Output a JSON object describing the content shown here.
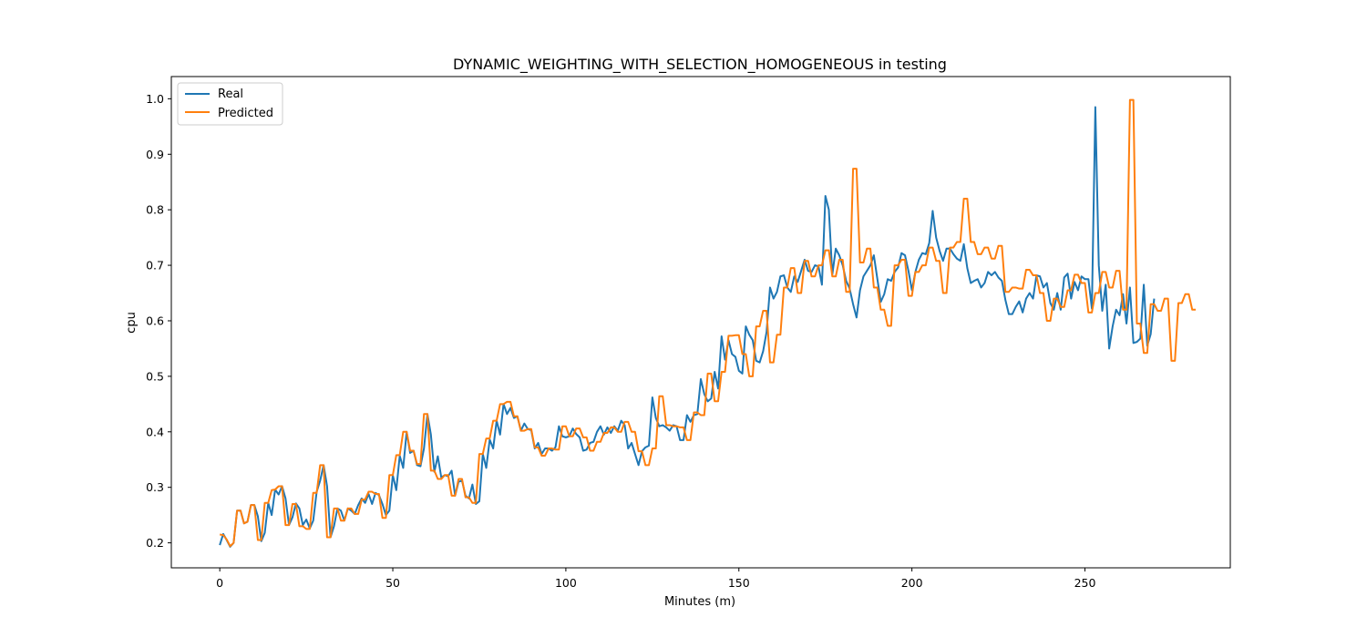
{
  "chart_data": {
    "type": "line",
    "title": "DYNAMIC_WEIGHTING_WITH_SELECTION_HOMOGENEOUS in testing",
    "xlabel": "Minutes (m)",
    "ylabel": "cpu",
    "xlim": [
      -14,
      292
    ],
    "ylim": [
      0.155,
      1.04
    ],
    "xticks": [
      0,
      50,
      100,
      150,
      200,
      250
    ],
    "xtick_labels": [
      "0",
      "50",
      "100",
      "150",
      "200",
      "250"
    ],
    "yticks": [
      0.2,
      0.3,
      0.4,
      0.5,
      0.6,
      0.7,
      0.8,
      0.9,
      1.0
    ],
    "ytick_labels": [
      "0.2",
      "0.3",
      "0.4",
      "0.5",
      "0.6",
      "0.7",
      "0.8",
      "0.9",
      "1.0"
    ],
    "grid": false,
    "legend_position": "top-left",
    "series": [
      {
        "name": "Real",
        "color": "#1f77b4",
        "x_start": 0,
        "values": [
          0.196,
          0.216,
          0.205,
          0.193,
          0.2,
          0.258,
          0.258,
          0.235,
          0.238,
          0.268,
          0.268,
          0.248,
          0.203,
          0.218,
          0.272,
          0.25,
          0.296,
          0.287,
          0.302,
          0.28,
          0.232,
          0.246,
          0.271,
          0.262,
          0.232,
          0.242,
          0.226,
          0.24,
          0.292,
          0.312,
          0.34,
          0.302,
          0.21,
          0.23,
          0.262,
          0.258,
          0.24,
          0.262,
          0.258,
          0.252,
          0.268,
          0.28,
          0.272,
          0.288,
          0.27,
          0.29,
          0.286,
          0.27,
          0.25,
          0.258,
          0.322,
          0.295,
          0.357,
          0.335,
          0.4,
          0.362,
          0.366,
          0.34,
          0.338,
          0.37,
          0.432,
          0.395,
          0.328,
          0.356,
          0.318,
          0.322,
          0.32,
          0.33,
          0.285,
          0.31,
          0.312,
          0.285,
          0.28,
          0.305,
          0.27,
          0.275,
          0.36,
          0.335,
          0.386,
          0.37,
          0.42,
          0.395,
          0.45,
          0.432,
          0.443,
          0.425,
          0.428,
          0.402,
          0.415,
          0.405,
          0.403,
          0.37,
          0.38,
          0.36,
          0.37,
          0.37,
          0.366,
          0.372,
          0.41,
          0.392,
          0.39,
          0.392,
          0.406,
          0.396,
          0.39,
          0.366,
          0.368,
          0.38,
          0.382,
          0.4,
          0.41,
          0.395,
          0.408,
          0.398,
          0.41,
          0.402,
          0.42,
          0.412,
          0.37,
          0.38,
          0.36,
          0.34,
          0.365,
          0.372,
          0.375,
          0.462,
          0.425,
          0.41,
          0.412,
          0.408,
          0.402,
          0.412,
          0.41,
          0.385,
          0.385,
          0.43,
          0.418,
          0.43,
          0.432,
          0.495,
          0.468,
          0.455,
          0.46,
          0.508,
          0.478,
          0.572,
          0.53,
          0.565,
          0.54,
          0.535,
          0.51,
          0.505,
          0.59,
          0.575,
          0.565,
          0.528,
          0.525,
          0.545,
          0.58,
          0.66,
          0.64,
          0.652,
          0.68,
          0.682,
          0.66,
          0.652,
          0.68,
          0.67,
          0.69,
          0.71,
          0.69,
          0.688,
          0.7,
          0.698,
          0.665,
          0.825,
          0.8,
          0.683,
          0.73,
          0.718,
          0.7,
          0.672,
          0.658,
          0.63,
          0.606,
          0.655,
          0.68,
          0.69,
          0.7,
          0.718,
          0.676,
          0.634,
          0.648,
          0.675,
          0.672,
          0.688,
          0.696,
          0.722,
          0.718,
          0.69,
          0.655,
          0.688,
          0.71,
          0.722,
          0.72,
          0.74,
          0.798,
          0.75,
          0.726,
          0.708,
          0.73,
          0.73,
          0.72,
          0.712,
          0.708,
          0.738,
          0.695,
          0.668,
          0.672,
          0.675,
          0.66,
          0.668,
          0.688,
          0.682,
          0.688,
          0.678,
          0.672,
          0.638,
          0.612,
          0.612,
          0.625,
          0.635,
          0.615,
          0.64,
          0.65,
          0.64,
          0.682,
          0.68,
          0.66,
          0.668,
          0.632,
          0.62,
          0.65,
          0.62,
          0.678,
          0.685,
          0.64,
          0.67,
          0.655,
          0.68,
          0.675,
          0.675,
          0.622,
          0.985,
          0.7,
          0.618,
          0.665,
          0.55,
          0.59,
          0.62,
          0.61,
          0.648,
          0.595,
          0.66,
          0.56,
          0.562,
          0.568,
          0.665,
          0.555,
          0.576,
          0.64
        ]
      },
      {
        "name": "Predicted",
        "color": "#ff7f0e",
        "x_start": 0,
        "values": [
          0.215,
          0.214,
          0.206,
          0.194,
          0.2,
          0.258,
          0.258,
          0.235,
          0.238,
          0.268,
          0.268,
          0.205,
          0.205,
          0.272,
          0.272,
          0.295,
          0.296,
          0.302,
          0.302,
          0.232,
          0.232,
          0.27,
          0.27,
          0.23,
          0.23,
          0.225,
          0.225,
          0.29,
          0.29,
          0.34,
          0.34,
          0.21,
          0.21,
          0.262,
          0.262,
          0.24,
          0.24,
          0.262,
          0.262,
          0.252,
          0.252,
          0.278,
          0.278,
          0.292,
          0.292,
          0.288,
          0.288,
          0.245,
          0.245,
          0.322,
          0.322,
          0.358,
          0.358,
          0.4,
          0.4,
          0.366,
          0.366,
          0.342,
          0.342,
          0.432,
          0.432,
          0.33,
          0.33,
          0.315,
          0.315,
          0.322,
          0.322,
          0.285,
          0.285,
          0.315,
          0.315,
          0.282,
          0.282,
          0.272,
          0.272,
          0.36,
          0.36,
          0.388,
          0.388,
          0.42,
          0.42,
          0.45,
          0.45,
          0.454,
          0.454,
          0.428,
          0.428,
          0.402,
          0.402,
          0.405,
          0.405,
          0.372,
          0.372,
          0.357,
          0.357,
          0.37,
          0.37,
          0.368,
          0.368,
          0.41,
          0.41,
          0.392,
          0.392,
          0.406,
          0.406,
          0.39,
          0.39,
          0.366,
          0.366,
          0.382,
          0.382,
          0.398,
          0.398,
          0.408,
          0.408,
          0.4,
          0.4,
          0.418,
          0.418,
          0.4,
          0.4,
          0.365,
          0.365,
          0.34,
          0.34,
          0.37,
          0.37,
          0.464,
          0.464,
          0.412,
          0.412,
          0.41,
          0.41,
          0.408,
          0.408,
          0.385,
          0.385,
          0.435,
          0.435,
          0.43,
          0.43,
          0.505,
          0.505,
          0.455,
          0.455,
          0.508,
          0.508,
          0.573,
          0.573,
          0.574,
          0.574,
          0.54,
          0.54,
          0.5,
          0.5,
          0.59,
          0.59,
          0.618,
          0.618,
          0.525,
          0.525,
          0.575,
          0.575,
          0.66,
          0.66,
          0.695,
          0.695,
          0.65,
          0.65,
          0.708,
          0.708,
          0.68,
          0.68,
          0.7,
          0.7,
          0.727,
          0.727,
          0.68,
          0.68,
          0.71,
          0.71,
          0.652,
          0.652,
          0.874,
          0.874,
          0.705,
          0.705,
          0.73,
          0.73,
          0.66,
          0.66,
          0.62,
          0.62,
          0.591,
          0.591,
          0.7,
          0.7,
          0.71,
          0.71,
          0.645,
          0.645,
          0.688,
          0.688,
          0.7,
          0.7,
          0.732,
          0.732,
          0.708,
          0.708,
          0.65,
          0.65,
          0.732,
          0.732,
          0.742,
          0.742,
          0.82,
          0.82,
          0.742,
          0.742,
          0.72,
          0.72,
          0.732,
          0.732,
          0.712,
          0.712,
          0.735,
          0.735,
          0.652,
          0.652,
          0.66,
          0.66,
          0.658,
          0.658,
          0.692,
          0.692,
          0.682,
          0.682,
          0.65,
          0.65,
          0.6,
          0.6,
          0.64,
          0.64,
          0.625,
          0.625,
          0.655,
          0.655,
          0.683,
          0.683,
          0.668,
          0.668,
          0.615,
          0.615,
          0.65,
          0.65,
          0.688,
          0.688,
          0.66,
          0.66,
          0.69,
          0.69,
          0.62,
          0.62,
          0.998,
          0.998,
          0.595,
          0.595,
          0.542,
          0.542,
          0.63,
          0.63,
          0.618,
          0.618,
          0.64,
          0.64,
          0.528,
          0.528,
          0.632,
          0.632,
          0.648,
          0.648,
          0.62,
          0.62
        ]
      }
    ]
  }
}
